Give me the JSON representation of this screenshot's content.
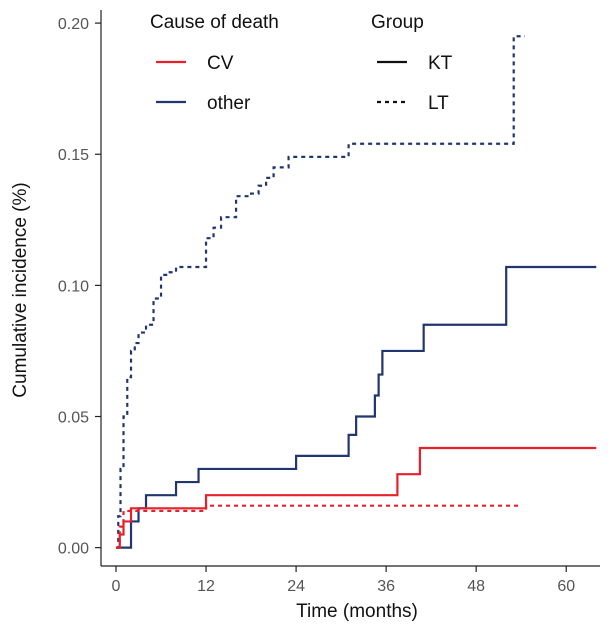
{
  "chart_data": {
    "type": "line",
    "step": true,
    "xlabel": "Time (months)",
    "ylabel": "Cumulative incidence (%)",
    "xlim": [
      -2,
      64.5
    ],
    "ylim": [
      -0.007,
      0.205
    ],
    "xticks": [
      0,
      12,
      24,
      36,
      48,
      60
    ],
    "xtick_labels": [
      "0",
      "12",
      "24",
      "36",
      "48",
      "60"
    ],
    "yticks": [
      0,
      0.05,
      0.1,
      0.15,
      0.2
    ],
    "ytick_labels": [
      "0.00",
      "0.05",
      "0.10",
      "0.15",
      "0.20"
    ],
    "grid": false,
    "legend": {
      "placement": "top-left",
      "color_title": "Cause of death",
      "color_entries": [
        {
          "label": "CV",
          "color": "#e8202a"
        },
        {
          "label": "other",
          "color": "#21366e"
        }
      ],
      "linetype_title": "Group",
      "linetype_entries": [
        {
          "label": "KT",
          "dash": "solid"
        },
        {
          "label": "LT",
          "dash": "dashed"
        }
      ]
    },
    "series": [
      {
        "cause": "other",
        "group": "LT",
        "color": "#21366e",
        "dash": "dashed",
        "x": [
          0,
          0.3,
          0.6,
          1.0,
          1.5,
          2.0,
          2.5,
          3.0,
          4.0,
          5.0,
          6.0,
          7.0,
          8.0,
          11.0,
          12.0,
          13.0,
          14.0,
          16.0,
          18.0,
          19.0,
          20.0,
          21.0,
          23.0,
          31.0,
          53.0,
          54.5
        ],
        "y": [
          0,
          0.012,
          0.03,
          0.05,
          0.065,
          0.075,
          0.078,
          0.082,
          0.085,
          0.095,
          0.104,
          0.105,
          0.107,
          0.107,
          0.118,
          0.122,
          0.126,
          0.134,
          0.135,
          0.138,
          0.141,
          0.145,
          0.149,
          0.154,
          0.195,
          0.195
        ]
      },
      {
        "cause": "other",
        "group": "KT",
        "color": "#21366e",
        "dash": "solid",
        "x": [
          0,
          0.5,
          2.0,
          3.0,
          4.0,
          8.0,
          11.0,
          24.0,
          31.0,
          32.0,
          34.5,
          35.0,
          35.5,
          41.0,
          52.0,
          64.0
        ],
        "y": [
          0,
          0,
          0.01,
          0.015,
          0.02,
          0.025,
          0.03,
          0.035,
          0.043,
          0.05,
          0.058,
          0.066,
          0.075,
          0.085,
          0.107,
          0.107
        ]
      },
      {
        "cause": "CV",
        "group": "KT",
        "color": "#e8202a",
        "dash": "solid",
        "x": [
          0,
          0.5,
          1.0,
          2.0,
          12.0,
          37.5,
          40.5,
          64.0
        ],
        "y": [
          0,
          0.005,
          0.01,
          0.015,
          0.02,
          0.028,
          0.038,
          0.038
        ]
      },
      {
        "cause": "CV",
        "group": "LT",
        "color": "#e8202a",
        "dash": "dashed",
        "x": [
          0,
          0.5,
          1.0,
          12.0,
          54.0
        ],
        "y": [
          0,
          0.008,
          0.014,
          0.016,
          0.016
        ]
      }
    ]
  }
}
